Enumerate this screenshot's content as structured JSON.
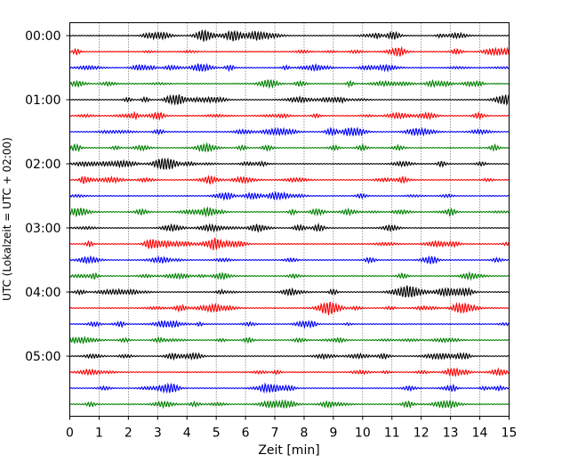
{
  "chart_data": {
    "type": "line",
    "xlabel": "Zeit  [min]",
    "ylabel": "UTC (Lokalzeit = UTC + 02:00)",
    "xlim": [
      0,
      15
    ],
    "x_ticks": [
      "0",
      "1",
      "2",
      "3",
      "4",
      "5",
      "6",
      "7",
      "8",
      "9",
      "10",
      "11",
      "12",
      "13",
      "14",
      "15"
    ],
    "y_tick_labels": [
      "00:00",
      "01:00",
      "02:00",
      "03:00",
      "04:00",
      "05:00"
    ],
    "trace_interval_min": 15,
    "trace_count": 24,
    "trace_colors": [
      "#000000",
      "#ff0000",
      "#0000ff",
      "#008000"
    ],
    "grid": "vertical dotted"
  }
}
